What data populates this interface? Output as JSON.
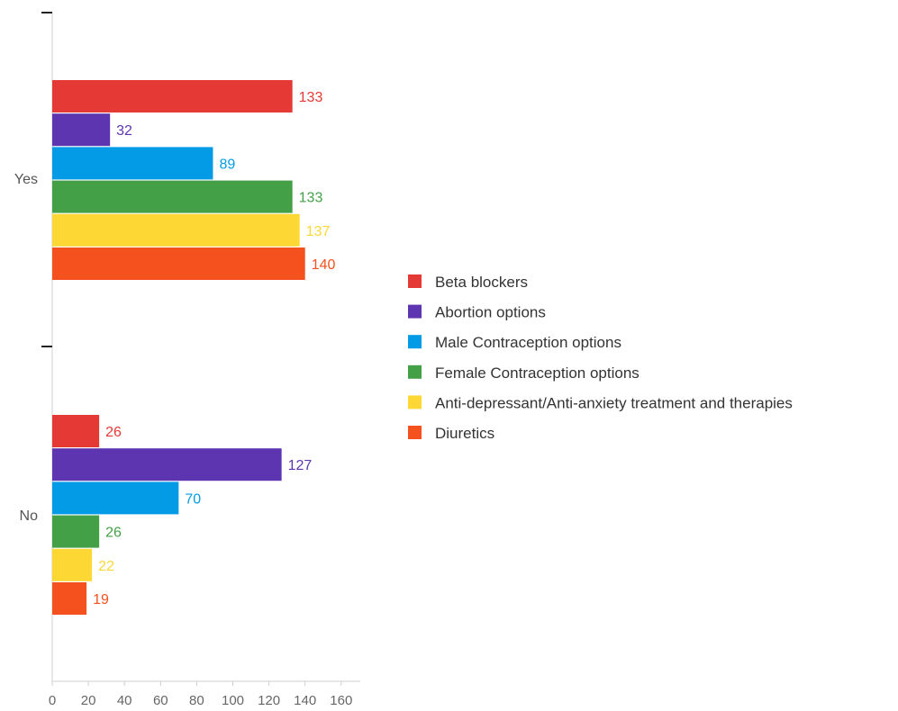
{
  "chart_data": {
    "type": "bar",
    "orientation": "horizontal",
    "categories": [
      "Yes",
      "No"
    ],
    "series": [
      {
        "name": "Beta blockers",
        "color": "#e53935",
        "values": [
          133,
          26
        ]
      },
      {
        "name": "Abortion options",
        "color": "#5e35b1",
        "values": [
          32,
          127
        ]
      },
      {
        "name": "Male Contraception options",
        "color": "#039be5",
        "values": [
          89,
          70
        ]
      },
      {
        "name": "Female Contraception options",
        "color": "#43a047",
        "values": [
          133,
          26
        ]
      },
      {
        "name": "Anti-depressant/Anti-anxiety treatment and therapies",
        "color": "#fdd835",
        "values": [
          137,
          22
        ]
      },
      {
        "name": "Diuretics",
        "color": "#f4511e",
        "values": [
          140,
          19
        ]
      }
    ],
    "x_ticks": [
      0,
      20,
      40,
      60,
      80,
      100,
      120,
      140,
      160
    ],
    "xlim": [
      0,
      170
    ],
    "title": "",
    "xlabel": "",
    "ylabel": "",
    "grid": false,
    "legend_position": "right"
  }
}
